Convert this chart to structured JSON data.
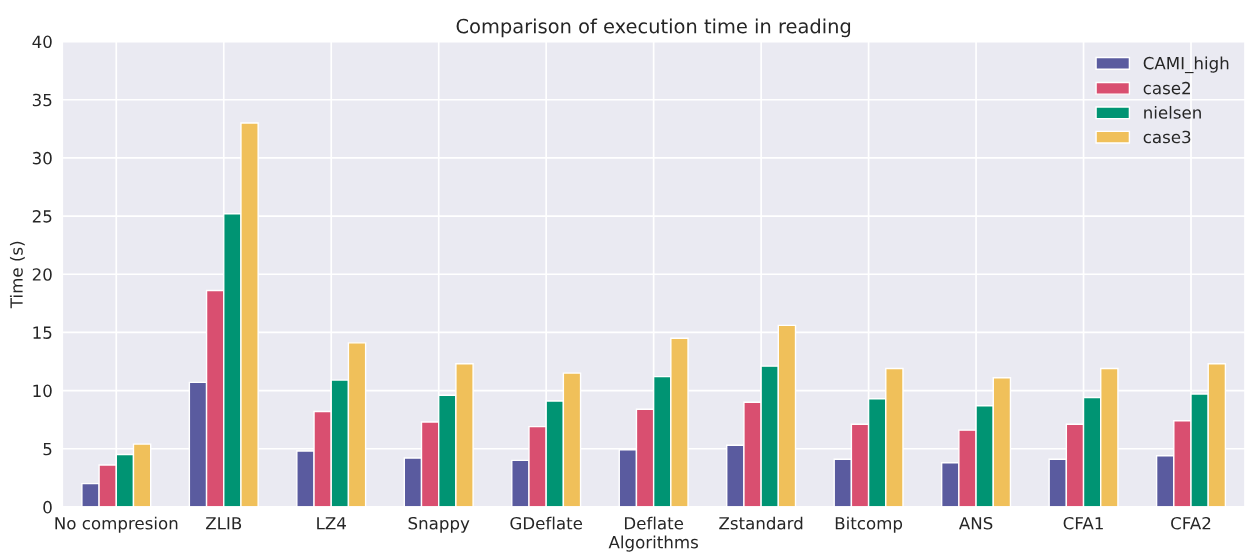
{
  "chart_data": {
    "type": "bar",
    "title": "Comparison of execution time in reading",
    "xlabel": "Algorithms",
    "ylabel": "Time (s)",
    "categories": [
      "No compresion",
      "ZLIB",
      "LZ4",
      "Snappy",
      "GDeflate",
      "Deflate",
      "Zstandard",
      "Bitcomp",
      "ANS",
      "CFA1",
      "CFA2"
    ],
    "series": [
      {
        "name": "CAMI_high",
        "color": "#5a5b9f",
        "values": [
          2.0,
          10.7,
          4.8,
          4.2,
          4.0,
          4.9,
          5.3,
          4.1,
          3.8,
          4.1,
          4.4
        ]
      },
      {
        "name": "case2",
        "color": "#d94f70",
        "values": [
          3.6,
          18.6,
          8.2,
          7.3,
          6.9,
          8.4,
          9.0,
          7.1,
          6.6,
          7.1,
          7.4
        ]
      },
      {
        "name": "nielsen",
        "color": "#009473",
        "values": [
          4.5,
          25.2,
          10.9,
          9.6,
          9.1,
          11.2,
          12.1,
          9.3,
          8.7,
          9.4,
          9.7
        ]
      },
      {
        "name": "case3",
        "color": "#f0c05a",
        "values": [
          5.4,
          33.0,
          14.1,
          12.3,
          11.5,
          14.5,
          15.6,
          11.9,
          11.1,
          11.9,
          12.3
        ]
      }
    ],
    "ylim": [
      0,
      40
    ],
    "yticks": [
      0,
      5,
      10,
      15,
      20,
      25,
      30,
      35,
      40
    ],
    "grid": true,
    "legend": "top right"
  }
}
